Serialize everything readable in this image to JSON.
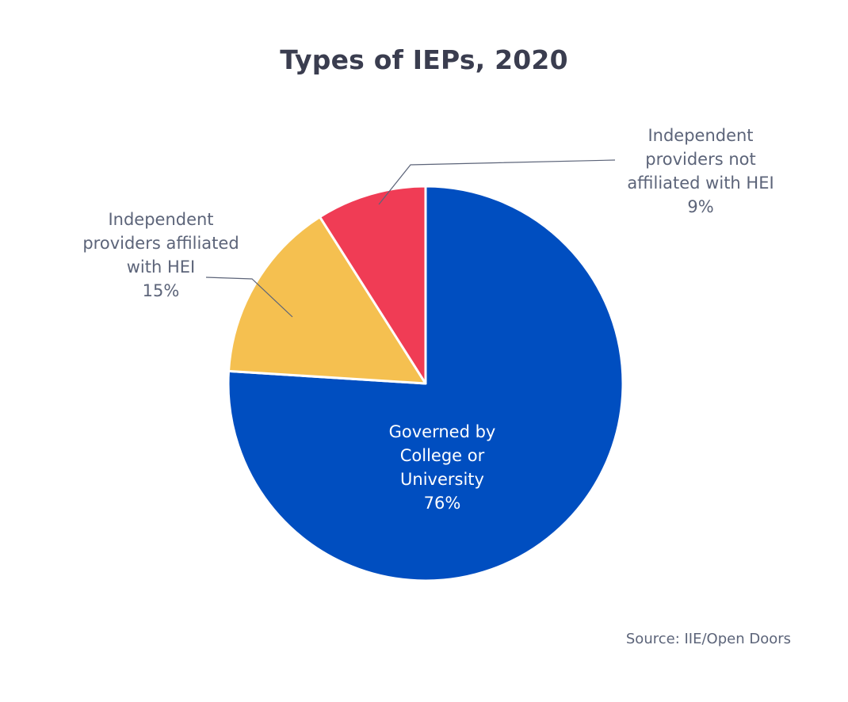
{
  "chart_data": {
    "type": "pie",
    "title": "Types of IEPs, 2020",
    "slices": [
      {
        "label": [
          "Governed by",
          "College or",
          "University"
        ],
        "value_label": "76%",
        "value": 76,
        "color": "#004ec0",
        "label_color": "#ffffff"
      },
      {
        "label": [
          "Independent",
          "providers affiliated",
          "with HEI"
        ],
        "value_label": "15%",
        "value": 15,
        "color": "#f5c050",
        "label_color": "#5c6479"
      },
      {
        "label": [
          "Independent",
          "providers not",
          "affiliated with HEI"
        ],
        "value_label": "9%",
        "value": 9,
        "color": "#f03c55",
        "label_color": "#5c6479"
      }
    ],
    "start": "12 o'clock",
    "direction": "clockwise",
    "source": "Source: IIE/Open Doors"
  }
}
